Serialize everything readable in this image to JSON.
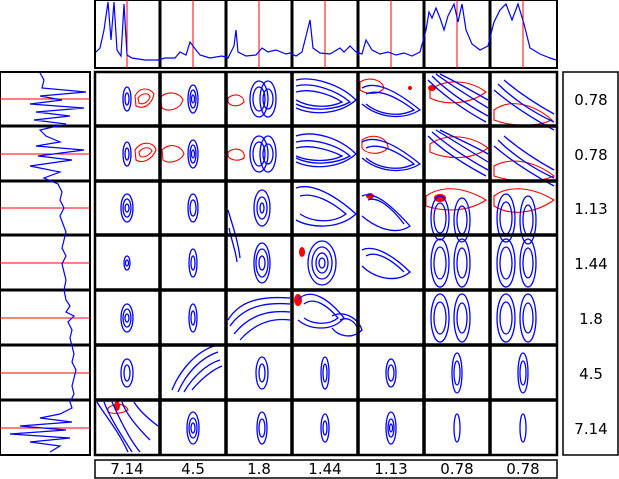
{
  "figure": {
    "row_labels": [
      "0.78",
      "0.78",
      "1.13",
      "1.44",
      "1.8",
      "4.5",
      "7.14"
    ],
    "column_labels": [
      "7.14",
      "4.5",
      "1.8",
      "1.44",
      "1.13",
      "0.78",
      "0.78"
    ],
    "colors": {
      "positive_contour": "#0000ff",
      "negative_contour": "#ff0000",
      "grid_line": "#000000",
      "background": "#ffffff"
    }
  }
}
